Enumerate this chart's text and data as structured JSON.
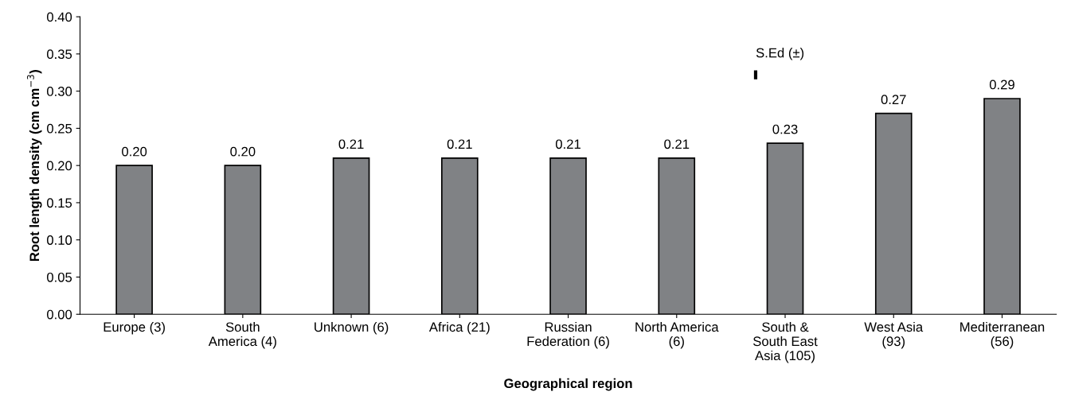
{
  "chart_data": {
    "type": "bar",
    "xlabel": "Geographical region",
    "ylabel": "Root length density (cm cm$^{−3}$)",
    "categories": [
      "Europe (3)",
      "South\nAmerica (4)",
      "Unknown (6)",
      "Africa (21)",
      "Russian\nFederation (6)",
      "North America\n(6)",
      "South &\nSouth East\nAsia (105)",
      "West Asia\n(93)",
      "Mediterranean\n(56)"
    ],
    "values": [
      0.2,
      0.2,
      0.21,
      0.21,
      0.21,
      0.21,
      0.23,
      0.27,
      0.29
    ],
    "value_labels": [
      "0.20",
      "0.20",
      "0.21",
      "0.21",
      "0.21",
      "0.21",
      "0.23",
      "0.27",
      "0.29"
    ],
    "color": "#808285",
    "ylim": [
      0,
      0.4
    ],
    "yticks": [
      {
        "value": 0,
        "label": "0.00"
      },
      {
        "value": 0.05,
        "label": "0.05"
      },
      {
        "value": 0.1,
        "label": "0.10"
      },
      {
        "value": 0.15,
        "label": "0.15"
      },
      {
        "value": 0.2,
        "label": "0.20"
      },
      {
        "value": 0.25,
        "label": "0.25"
      },
      {
        "value": 0.3,
        "label": "0.30"
      },
      {
        "value": 0.35,
        "label": "0.35"
      },
      {
        "value": 0.4,
        "label": "0.40"
      }
    ],
    "annotations": [
      "S.Ed (±)"
    ],
    "grid": false,
    "legend": false
  }
}
